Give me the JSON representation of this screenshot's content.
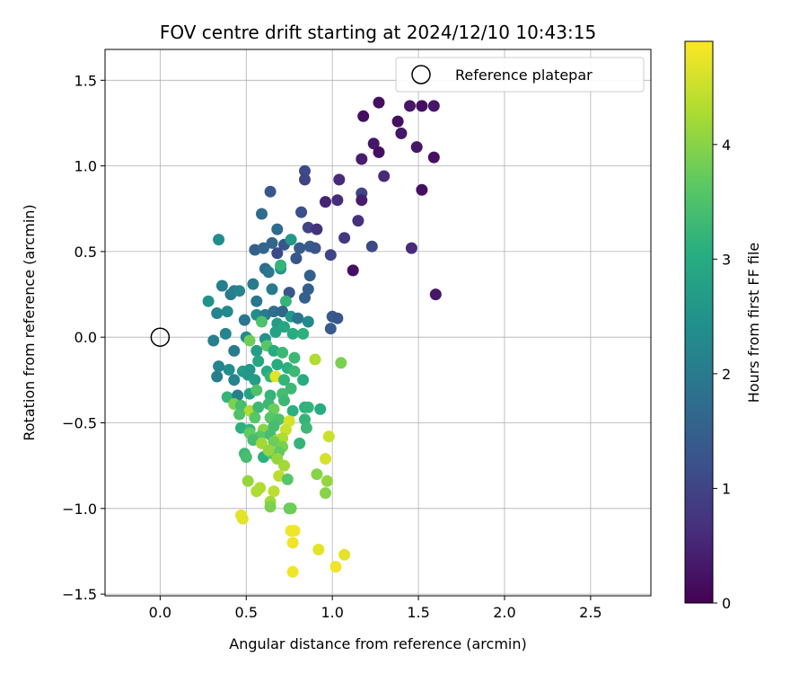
{
  "chart_data": {
    "type": "scatter",
    "title": "FOV centre drift starting at 2024/12/10 10:43:15",
    "xlabel": "Angular distance from reference (arcmin)",
    "ylabel": "Rotation from reference (arcmin)",
    "xlim": [
      -0.32,
      2.85
    ],
    "ylim": [
      -1.51,
      1.68
    ],
    "xticks": [
      "0.0",
      "0.5",
      "1.0",
      "1.5",
      "2.0",
      "2.5"
    ],
    "xtick_values": [
      0,
      0.5,
      1.0,
      1.5,
      2.0,
      2.5
    ],
    "yticks": [
      "−1.5",
      "−1.0",
      "−0.5",
      "0.0",
      "0.5",
      "1.0",
      "1.5"
    ],
    "ytick_values": [
      -1.5,
      -1.0,
      -0.5,
      0,
      0.5,
      1.0,
      1.5
    ],
    "grid": true,
    "legend": {
      "placement": "top-right",
      "entries": [
        "Reference platepar"
      ]
    },
    "reference_point": {
      "x": 0,
      "y": 0,
      "label": "Reference platepar"
    },
    "colorbar": {
      "label": "Hours from first FF file",
      "colormap": "viridis",
      "range": [
        0,
        4.9
      ],
      "ticks": [
        "0",
        "1",
        "2",
        "3",
        "4"
      ],
      "tick_values": [
        0,
        1,
        2,
        3,
        4
      ]
    },
    "points": [
      [
        1.27,
        1.37,
        0.2
      ],
      [
        1.45,
        1.35,
        0.3
      ],
      [
        1.52,
        1.35,
        0.2
      ],
      [
        1.59,
        1.35,
        0.3
      ],
      [
        1.18,
        1.29,
        0.2
      ],
      [
        1.38,
        1.26,
        0.2
      ],
      [
        1.4,
        1.19,
        0.3
      ],
      [
        1.24,
        1.13,
        0.3
      ],
      [
        1.49,
        1.11,
        0.3
      ],
      [
        1.27,
        1.08,
        0.2
      ],
      [
        1.59,
        1.05,
        0.2
      ],
      [
        1.17,
        1.04,
        0.4
      ],
      [
        1.3,
        0.94,
        0.6
      ],
      [
        1.04,
        0.92,
        0.6
      ],
      [
        1.52,
        0.86,
        0.2
      ],
      [
        1.17,
        0.84,
        1.0
      ],
      [
        1.17,
        0.8,
        0.4
      ],
      [
        0.96,
        0.79,
        0.5
      ],
      [
        1.03,
        0.8,
        0.6
      ],
      [
        1.15,
        0.68,
        0.7
      ],
      [
        1.07,
        0.58,
        0.8
      ],
      [
        1.23,
        0.53,
        1.1
      ],
      [
        1.46,
        0.52,
        0.6
      ],
      [
        1.12,
        0.39,
        0.2
      ],
      [
        1.6,
        0.25,
        0.3
      ],
      [
        0.84,
        0.97,
        1.1
      ],
      [
        0.84,
        0.92,
        1.0
      ],
      [
        0.64,
        0.85,
        1.3
      ],
      [
        0.82,
        0.73,
        1.2
      ],
      [
        0.59,
        0.72,
        1.7
      ],
      [
        0.68,
        0.63,
        1.7
      ],
      [
        0.86,
        0.64,
        1.0
      ],
      [
        0.91,
        0.63,
        0.7
      ],
      [
        0.65,
        0.55,
        1.6
      ],
      [
        0.72,
        0.54,
        1.3
      ],
      [
        0.76,
        0.57,
        2.6
      ],
      [
        0.55,
        0.51,
        1.5
      ],
      [
        0.6,
        0.52,
        1.6
      ],
      [
        0.81,
        0.52,
        1.4
      ],
      [
        0.87,
        0.53,
        1.4
      ],
      [
        0.9,
        0.52,
        1.3
      ],
      [
        0.68,
        0.49,
        1.1
      ],
      [
        0.79,
        0.46,
        1.3
      ],
      [
        0.99,
        0.48,
        1.0
      ],
      [
        0.7,
        0.4,
        2.5
      ],
      [
        0.7,
        0.42,
        3.2
      ],
      [
        0.61,
        0.4,
        1.7
      ],
      [
        0.63,
        0.38,
        1.9
      ],
      [
        0.87,
        0.36,
        1.5
      ],
      [
        0.86,
        0.28,
        1.5
      ],
      [
        0.54,
        0.31,
        2.0
      ],
      [
        0.41,
        0.25,
        2.0
      ],
      [
        0.43,
        0.27,
        2.1
      ],
      [
        0.46,
        0.27,
        2.2
      ],
      [
        0.36,
        0.3,
        2.1
      ],
      [
        0.65,
        0.28,
        2.0
      ],
      [
        0.75,
        0.26,
        1.3
      ],
      [
        0.84,
        0.23,
        1.5
      ],
      [
        0.28,
        0.21,
        2.5
      ],
      [
        0.56,
        0.21,
        1.9
      ],
      [
        0.73,
        0.21,
        3.2
      ],
      [
        0.34,
        0.57,
        2.4
      ],
      [
        0.33,
        0.14,
        2.2
      ],
      [
        0.39,
        0.15,
        2.3
      ],
      [
        0.49,
        0.1,
        1.9
      ],
      [
        0.56,
        0.13,
        2.4
      ],
      [
        0.61,
        0.13,
        2.0
      ],
      [
        0.66,
        0.15,
        1.8
      ],
      [
        0.71,
        0.15,
        1.6
      ],
      [
        0.76,
        0.12,
        2.6
      ],
      [
        0.8,
        0.11,
        1.9
      ],
      [
        0.86,
        0.09,
        2.3
      ],
      [
        1.0,
        0.12,
        1.4
      ],
      [
        1.03,
        0.11,
        1.3
      ],
      [
        0.99,
        0.05,
        1.4
      ],
      [
        0.59,
        0.09,
        3.5
      ],
      [
        0.68,
        0.08,
        2.7
      ],
      [
        0.72,
        0.06,
        2.9
      ],
      [
        0.31,
        -0.02,
        2.1
      ],
      [
        0.38,
        0.02,
        2.2
      ],
      [
        0.5,
        0.0,
        2.3
      ],
      [
        0.61,
        -0.01,
        2.5
      ],
      [
        0.67,
        0.03,
        2.8
      ],
      [
        0.77,
        0.02,
        3.0
      ],
      [
        0.83,
        0.02,
        3.1
      ],
      [
        0.52,
        -0.02,
        3.8
      ],
      [
        0.62,
        -0.05,
        3.6
      ],
      [
        0.43,
        -0.08,
        2.0
      ],
      [
        0.56,
        -0.08,
        2.7
      ],
      [
        0.66,
        -0.08,
        3.0
      ],
      [
        0.71,
        -0.09,
        3.3
      ],
      [
        0.57,
        -0.14,
        2.9
      ],
      [
        0.68,
        -0.16,
        3.0
      ],
      [
        0.78,
        -0.12,
        3.3
      ],
      [
        0.9,
        -0.13,
        4.3
      ],
      [
        1.05,
        -0.15,
        3.9
      ],
      [
        0.34,
        -0.17,
        2.2
      ],
      [
        0.4,
        -0.19,
        2.4
      ],
      [
        0.48,
        -0.2,
        2.7
      ],
      [
        0.52,
        -0.19,
        2.6
      ],
      [
        0.62,
        -0.2,
        3.0
      ],
      [
        0.74,
        -0.18,
        3.1
      ],
      [
        0.78,
        -0.2,
        3.3
      ],
      [
        0.33,
        -0.23,
        2.1
      ],
      [
        0.43,
        -0.25,
        2.2
      ],
      [
        0.51,
        -0.22,
        2.6
      ],
      [
        0.55,
        -0.25,
        2.7
      ],
      [
        0.64,
        -0.23,
        3.2
      ],
      [
        0.67,
        -0.23,
        4.7
      ],
      [
        0.72,
        -0.25,
        3.2
      ],
      [
        0.76,
        -0.3,
        3.3
      ],
      [
        0.83,
        -0.25,
        3.0
      ],
      [
        0.39,
        -0.35,
        3.2
      ],
      [
        0.45,
        -0.34,
        2.1
      ],
      [
        0.52,
        -0.33,
        2.8
      ],
      [
        0.56,
        -0.31,
        3.5
      ],
      [
        0.64,
        -0.34,
        3.2
      ],
      [
        0.71,
        -0.33,
        3.4
      ],
      [
        0.72,
        -0.37,
        3.3
      ],
      [
        0.43,
        -0.39,
        3.9
      ],
      [
        0.47,
        -0.4,
        3.4
      ],
      [
        0.52,
        -0.43,
        4.3
      ],
      [
        0.57,
        -0.41,
        3.3
      ],
      [
        0.63,
        -0.39,
        3.3
      ],
      [
        0.66,
        -0.42,
        3.8
      ],
      [
        0.77,
        -0.43,
        3.1
      ],
      [
        0.84,
        -0.41,
        3.1
      ],
      [
        0.86,
        -0.41,
        3.2
      ],
      [
        0.93,
        -0.42,
        3.0
      ],
      [
        0.46,
        -0.45,
        3.5
      ],
      [
        0.55,
        -0.47,
        3.6
      ],
      [
        0.64,
        -0.47,
        3.6
      ],
      [
        0.69,
        -0.48,
        3.5
      ],
      [
        0.75,
        -0.49,
        4.6
      ],
      [
        0.84,
        -0.48,
        3.2
      ],
      [
        0.47,
        -0.53,
        3.1
      ],
      [
        0.52,
        -0.54,
        3.2
      ],
      [
        0.6,
        -0.54,
        4.0
      ],
      [
        0.66,
        -0.52,
        3.4
      ],
      [
        0.73,
        -0.54,
        4.5
      ],
      [
        0.85,
        -0.53,
        3.3
      ],
      [
        0.52,
        -0.56,
        3.7
      ],
      [
        0.58,
        -0.58,
        3.6
      ],
      [
        0.64,
        -0.57,
        3.4
      ],
      [
        0.68,
        -0.6,
        4.4
      ],
      [
        0.71,
        -0.59,
        4.3
      ],
      [
        0.98,
        -0.58,
        4.5
      ],
      [
        0.54,
        -0.6,
        3.4
      ],
      [
        0.59,
        -0.62,
        4.2
      ],
      [
        0.66,
        -0.61,
        3.8
      ],
      [
        0.71,
        -0.64,
        3.9
      ],
      [
        0.81,
        -0.62,
        3.2
      ],
      [
        0.49,
        -0.68,
        3.3
      ],
      [
        0.5,
        -0.7,
        3.4
      ],
      [
        0.6,
        -0.7,
        3.1
      ],
      [
        0.65,
        -0.68,
        3.6
      ],
      [
        0.69,
        -0.67,
        3.7
      ],
      [
        0.63,
        -0.66,
        4.1
      ],
      [
        0.68,
        -0.71,
        4.1
      ],
      [
        0.72,
        -0.75,
        4.2
      ],
      [
        0.96,
        -0.71,
        4.6
      ],
      [
        0.69,
        -0.81,
        4.4
      ],
      [
        0.74,
        -0.83,
        3.6
      ],
      [
        0.91,
        -0.8,
        4.0
      ],
      [
        0.97,
        -0.84,
        4.1
      ],
      [
        0.51,
        -0.84,
        4.1
      ],
      [
        0.56,
        -0.9,
        4.3
      ],
      [
        0.58,
        -0.88,
        4.3
      ],
      [
        0.66,
        -0.9,
        4.4
      ],
      [
        0.96,
        -0.91,
        4.0
      ],
      [
        0.64,
        -0.96,
        4.2
      ],
      [
        0.64,
        -0.99,
        3.9
      ],
      [
        0.75,
        -1.0,
        3.7
      ],
      [
        0.76,
        -1.0,
        3.8
      ],
      [
        0.47,
        -1.04,
        4.7
      ],
      [
        0.48,
        -1.06,
        4.7
      ],
      [
        0.76,
        -1.13,
        4.8
      ],
      [
        0.78,
        -1.13,
        4.8
      ],
      [
        0.77,
        -1.2,
        4.8
      ],
      [
        0.92,
        -1.24,
        4.7
      ],
      [
        1.07,
        -1.27,
        4.7
      ],
      [
        1.02,
        -1.34,
        4.8
      ],
      [
        0.77,
        -1.37,
        4.8
      ]
    ]
  }
}
